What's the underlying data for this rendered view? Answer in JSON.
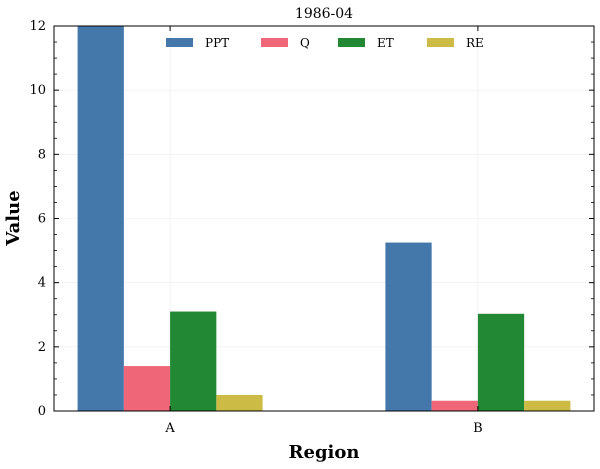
{
  "chart_data": {
    "type": "bar",
    "title": "1986-04",
    "xlabel": "Region",
    "ylabel": "Value",
    "categories": [
      "A",
      "B"
    ],
    "ylim": [
      0,
      12
    ],
    "yticks": [
      0,
      2,
      4,
      6,
      8,
      10,
      12
    ],
    "grid": true,
    "legend_position": "top-center",
    "series": [
      {
        "name": "PPT",
        "color": "#4477aa",
        "values": [
          12.0,
          5.25
        ]
      },
      {
        "name": "Q",
        "color": "#ee6677",
        "values": [
          1.4,
          0.32
        ]
      },
      {
        "name": "ET",
        "color": "#228833",
        "values": [
          3.1,
          3.03
        ]
      },
      {
        "name": "RE",
        "color": "#ccbb44",
        "values": [
          0.5,
          0.32
        ]
      }
    ]
  }
}
